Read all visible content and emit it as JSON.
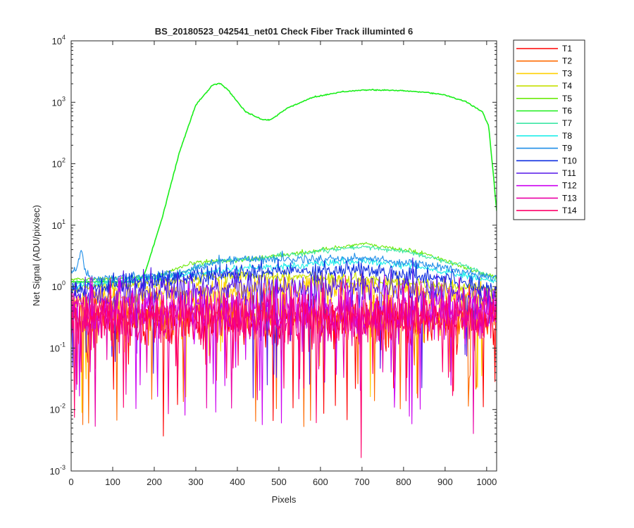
{
  "chart_data": {
    "type": "line",
    "title": "BS_20180523_042541_net01   Check Fiber     Track illuminted 6",
    "xlabel": "Pixels",
    "ylabel": "Net Signal (ADU/pix/sec)",
    "xlim": [
      0,
      1024
    ],
    "ylim": [
      0.001,
      10000
    ],
    "yscale": "log",
    "grid": false,
    "legend_position": "outside-right",
    "x_ticks": [
      "0",
      "100",
      "200",
      "300",
      "400",
      "500",
      "600",
      "700",
      "800",
      "900",
      "1000"
    ],
    "y_ticks": [
      {
        "base": "10",
        "exp": "-3"
      },
      {
        "base": "10",
        "exp": "-2"
      },
      {
        "base": "10",
        "exp": "-1"
      },
      {
        "base": "10",
        "exp": "0"
      },
      {
        "base": "10",
        "exp": "1"
      },
      {
        "base": "10",
        "exp": "2"
      },
      {
        "base": "10",
        "exp": "3"
      },
      {
        "base": "10",
        "exp": "4"
      }
    ],
    "series": [
      {
        "name": "T1",
        "color": "#ff0000",
        "level": [
          [
            0,
            0.3
          ],
          [
            1024,
            0.3
          ]
        ],
        "noise": 0.55
      },
      {
        "name": "T2",
        "color": "#ff6a00",
        "level": [
          [
            0,
            0.35
          ],
          [
            1024,
            0.35
          ]
        ],
        "noise": 0.5
      },
      {
        "name": "T3",
        "color": "#ffd000",
        "level": [
          [
            0,
            0.6
          ],
          [
            300,
            0.8
          ],
          [
            500,
            1.0
          ],
          [
            700,
            1.0
          ],
          [
            1024,
            0.7
          ]
        ],
        "noise": 0.3
      },
      {
        "name": "T4",
        "color": "#c6e000",
        "level": [
          [
            0,
            0.9
          ],
          [
            300,
            1.4
          ],
          [
            500,
            1.5
          ],
          [
            700,
            1.3
          ],
          [
            1024,
            0.9
          ]
        ],
        "noise": 0.12
      },
      {
        "name": "T5",
        "color": "#6bea0a",
        "level": [
          [
            0,
            1.3
          ],
          [
            200,
            1.4
          ],
          [
            300,
            2.5
          ],
          [
            400,
            2.7
          ],
          [
            550,
            3.5
          ],
          [
            700,
            5.0
          ],
          [
            850,
            3.5
          ],
          [
            950,
            2.0
          ],
          [
            1024,
            1.4
          ]
        ],
        "noise": 0.05
      },
      {
        "name": "T6",
        "color": "#1aee1a",
        "level": [
          [
            0,
            1.2
          ],
          [
            150,
            1.2
          ],
          [
            175,
            1.5
          ],
          [
            200,
            5
          ],
          [
            220,
            14
          ],
          [
            260,
            150
          ],
          [
            300,
            900
          ],
          [
            340,
            1900
          ],
          [
            360,
            2050
          ],
          [
            380,
            1500
          ],
          [
            420,
            700
          ],
          [
            460,
            520
          ],
          [
            480,
            520
          ],
          [
            520,
            800
          ],
          [
            580,
            1200
          ],
          [
            650,
            1480
          ],
          [
            700,
            1580
          ],
          [
            750,
            1580
          ],
          [
            800,
            1540
          ],
          [
            850,
            1460
          ],
          [
            900,
            1320
          ],
          [
            950,
            1020
          ],
          [
            990,
            700
          ],
          [
            1005,
            400
          ],
          [
            1015,
            80
          ],
          [
            1024,
            17
          ]
        ],
        "noise": 0.015
      },
      {
        "name": "T7",
        "color": "#3ce6a5",
        "level": [
          [
            0,
            1.1
          ],
          [
            250,
            1.6
          ],
          [
            350,
            2.6
          ],
          [
            450,
            2.8
          ],
          [
            600,
            3.8
          ],
          [
            700,
            4.4
          ],
          [
            800,
            3.8
          ],
          [
            950,
            2.2
          ],
          [
            1024,
            1.3
          ]
        ],
        "noise": 0.05
      },
      {
        "name": "T8",
        "color": "#20eeea",
        "level": [
          [
            0,
            1.0
          ],
          [
            300,
            1.6
          ],
          [
            400,
            2.0
          ],
          [
            550,
            2.2
          ],
          [
            700,
            2.6
          ],
          [
            850,
            2.0
          ],
          [
            1024,
            1.2
          ]
        ],
        "noise": 0.08
      },
      {
        "name": "T9",
        "color": "#1f8ee8",
        "level": [
          [
            0,
            1.7
          ],
          [
            15,
            2.0
          ],
          [
            25,
            4.3
          ],
          [
            32,
            2.2
          ],
          [
            45,
            1.3
          ],
          [
            250,
            1.6
          ],
          [
            380,
            2.8
          ],
          [
            550,
            2.8
          ],
          [
            700,
            2.9
          ],
          [
            850,
            2.3
          ],
          [
            1024,
            1.4
          ]
        ],
        "noise": 0.1
      },
      {
        "name": "T10",
        "color": "#0f2fe0",
        "level": [
          [
            0,
            0.9
          ],
          [
            300,
            1.5
          ],
          [
            500,
            1.8
          ],
          [
            700,
            1.9
          ],
          [
            900,
            1.4
          ],
          [
            1024,
            0.9
          ]
        ],
        "noise": 0.2
      },
      {
        "name": "T11",
        "color": "#5316e8",
        "level": [
          [
            0,
            0.7
          ],
          [
            400,
            1.0
          ],
          [
            700,
            1.0
          ],
          [
            1024,
            0.7
          ]
        ],
        "noise": 0.35
      },
      {
        "name": "T12",
        "color": "#cc00f0",
        "level": [
          [
            0,
            0.4
          ],
          [
            1024,
            0.4
          ]
        ],
        "noise": 0.6
      },
      {
        "name": "T13",
        "color": "#ea00a6",
        "level": [
          [
            0,
            0.35
          ],
          [
            1024,
            0.35
          ]
        ],
        "noise": 0.6
      },
      {
        "name": "T14",
        "color": "#ff006a",
        "level": [
          [
            0,
            0.3
          ],
          [
            1024,
            0.3
          ]
        ],
        "noise": 0.6
      }
    ]
  }
}
